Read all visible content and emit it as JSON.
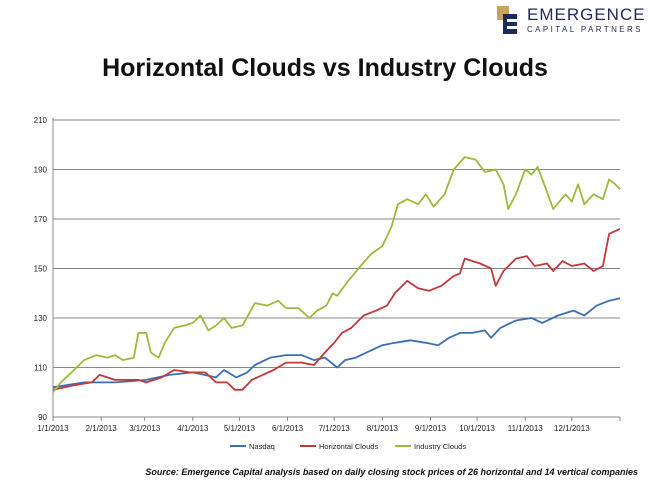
{
  "logo": {
    "name": "EMERGENCE",
    "sub": "CAPITAL PARTNERS"
  },
  "source": "Source: Emergence Capital analysis based on daily closing stock prices of 26 horizontal and 14 vertical companies",
  "chart_data": {
    "type": "line",
    "title": "Horizontal Clouds vs Industry Clouds",
    "xlabel": "",
    "ylabel": "",
    "ylim": [
      90,
      210
    ],
    "yticks": [
      90,
      110,
      130,
      150,
      170,
      190,
      210
    ],
    "xlim_days": [
      0,
      365
    ],
    "xticks": [
      {
        "day": 0,
        "label": "1/1/2013"
      },
      {
        "day": 31,
        "label": "2/1/2013"
      },
      {
        "day": 59,
        "label": "3/1/2013"
      },
      {
        "day": 90,
        "label": "4/1/2013"
      },
      {
        "day": 120,
        "label": "5/1/2013"
      },
      {
        "day": 151,
        "label": "6/1/2013"
      },
      {
        "day": 181,
        "label": "7/1/2013"
      },
      {
        "day": 212,
        "label": "8/1/2013"
      },
      {
        "day": 243,
        "label": "9/1/2013"
      },
      {
        "day": 273,
        "label": "10/1/2013"
      },
      {
        "day": 304,
        "label": "11/1/2013"
      },
      {
        "day": 334,
        "label": "12/1/2013"
      }
    ],
    "grid": true,
    "legend": "bottom",
    "series": [
      {
        "name": "Nasdaq",
        "color": "#3a6fb8",
        "points": [
          [
            0,
            102
          ],
          [
            20,
            104
          ],
          [
            40,
            104
          ],
          [
            60,
            105
          ],
          [
            75,
            107
          ],
          [
            90,
            108
          ],
          [
            105,
            106
          ],
          [
            110,
            109
          ],
          [
            118,
            106
          ],
          [
            125,
            108
          ],
          [
            130,
            111
          ],
          [
            140,
            114
          ],
          [
            150,
            115
          ],
          [
            160,
            115
          ],
          [
            168,
            113
          ],
          [
            175,
            114
          ],
          [
            183,
            110
          ],
          [
            188,
            113
          ],
          [
            195,
            114
          ],
          [
            205,
            117
          ],
          [
            212,
            119
          ],
          [
            220,
            120
          ],
          [
            230,
            121
          ],
          [
            240,
            120
          ],
          [
            248,
            119
          ],
          [
            255,
            122
          ],
          [
            262,
            124
          ],
          [
            270,
            124
          ],
          [
            278,
            125
          ],
          [
            282,
            122
          ],
          [
            288,
            126
          ],
          [
            298,
            129
          ],
          [
            308,
            130
          ],
          [
            315,
            128
          ],
          [
            325,
            131
          ],
          [
            335,
            133
          ],
          [
            342,
            131
          ],
          [
            350,
            135
          ],
          [
            358,
            137
          ],
          [
            365,
            138
          ]
        ]
      },
      {
        "name": "Horizontal Clouds",
        "color": "#c0393b",
        "points": [
          [
            0,
            101
          ],
          [
            15,
            103
          ],
          [
            25,
            104
          ],
          [
            30,
            107
          ],
          [
            40,
            105
          ],
          [
            55,
            105
          ],
          [
            60,
            104
          ],
          [
            70,
            106
          ],
          [
            78,
            109
          ],
          [
            88,
            108
          ],
          [
            98,
            108
          ],
          [
            105,
            104
          ],
          [
            112,
            104
          ],
          [
            117,
            101
          ],
          [
            122,
            101
          ],
          [
            128,
            105
          ],
          [
            135,
            107
          ],
          [
            142,
            109
          ],
          [
            150,
            112
          ],
          [
            160,
            112
          ],
          [
            168,
            111
          ],
          [
            175,
            116
          ],
          [
            181,
            120
          ],
          [
            186,
            124
          ],
          [
            192,
            126
          ],
          [
            200,
            131
          ],
          [
            208,
            133
          ],
          [
            215,
            135
          ],
          [
            220,
            140
          ],
          [
            228,
            145
          ],
          [
            235,
            142
          ],
          [
            242,
            141
          ],
          [
            250,
            143
          ],
          [
            258,
            147
          ],
          [
            262,
            148
          ],
          [
            265,
            154
          ],
          [
            275,
            152
          ],
          [
            282,
            150
          ],
          [
            285,
            143
          ],
          [
            290,
            149
          ],
          [
            298,
            154
          ],
          [
            305,
            155
          ],
          [
            310,
            151
          ],
          [
            318,
            152
          ],
          [
            322,
            149
          ],
          [
            328,
            153
          ],
          [
            334,
            151
          ],
          [
            342,
            152
          ],
          [
            348,
            149
          ],
          [
            354,
            151
          ],
          [
            358,
            164
          ],
          [
            365,
            166
          ]
        ]
      },
      {
        "name": "Industry Clouds",
        "color": "#9bbb3c",
        "points": [
          [
            0,
            100
          ],
          [
            5,
            104
          ],
          [
            12,
            108
          ],
          [
            20,
            113
          ],
          [
            28,
            115
          ],
          [
            35,
            114
          ],
          [
            40,
            115
          ],
          [
            45,
            113
          ],
          [
            52,
            114
          ],
          [
            55,
            124
          ],
          [
            60,
            124
          ],
          [
            63,
            116
          ],
          [
            68,
            114
          ],
          [
            72,
            120
          ],
          [
            78,
            126
          ],
          [
            85,
            127
          ],
          [
            90,
            128
          ],
          [
            95,
            131
          ],
          [
            100,
            125
          ],
          [
            105,
            127
          ],
          [
            110,
            130
          ],
          [
            115,
            126
          ],
          [
            122,
            127
          ],
          [
            130,
            136
          ],
          [
            138,
            135
          ],
          [
            145,
            137
          ],
          [
            150,
            134
          ],
          [
            158,
            134
          ],
          [
            165,
            130
          ],
          [
            170,
            133
          ],
          [
            176,
            135
          ],
          [
            180,
            140
          ],
          [
            183,
            139
          ],
          [
            190,
            145
          ],
          [
            198,
            151
          ],
          [
            205,
            156
          ],
          [
            212,
            159
          ],
          [
            218,
            167
          ],
          [
            222,
            176
          ],
          [
            228,
            178
          ],
          [
            235,
            176
          ],
          [
            240,
            180
          ],
          [
            245,
            175
          ],
          [
            252,
            180
          ],
          [
            258,
            190
          ],
          [
            265,
            195
          ],
          [
            272,
            194
          ],
          [
            278,
            189
          ],
          [
            285,
            190
          ],
          [
            290,
            184
          ],
          [
            293,
            174
          ],
          [
            298,
            180
          ],
          [
            304,
            190
          ],
          [
            308,
            188
          ],
          [
            312,
            191
          ],
          [
            318,
            181
          ],
          [
            322,
            174
          ],
          [
            330,
            180
          ],
          [
            334,
            177
          ],
          [
            338,
            184
          ],
          [
            342,
            176
          ],
          [
            348,
            180
          ],
          [
            354,
            178
          ],
          [
            358,
            186
          ],
          [
            362,
            184
          ],
          [
            365,
            182
          ]
        ]
      }
    ]
  }
}
